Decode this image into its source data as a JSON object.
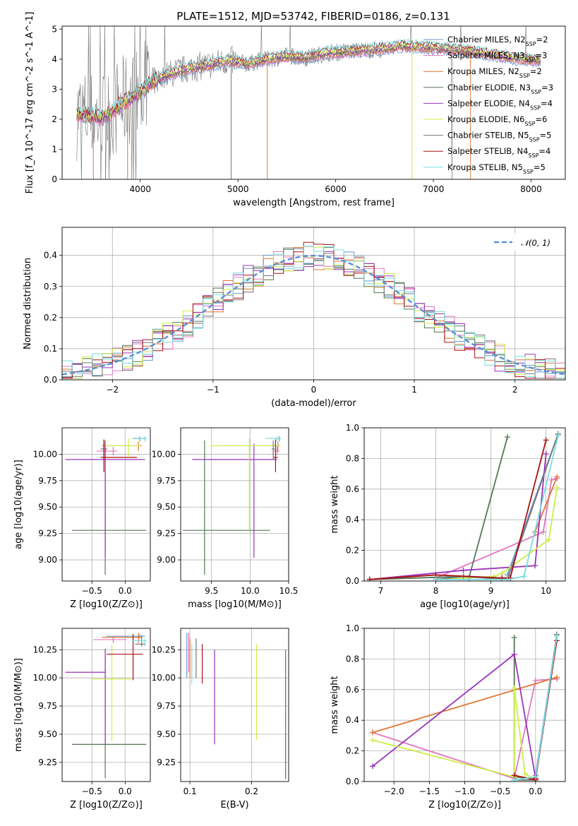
{
  "title": "PLATE=1512, MJD=53742, FIBERID=0186, z=0.131",
  "colors": {
    "chabrier_miles": "#6699cc",
    "salpeter_miles": "#e377c2",
    "kroupa_miles": "#dd7733",
    "chabrier_elodie": "#557755",
    "salpeter_elodie": "#9933bb",
    "kroupa_elodie": "#ccee44",
    "chabrier_stelib": "#777777",
    "salpeter_stelib": "#aa1111",
    "kroupa_stelib": "#77dddd",
    "normal_curve": "#5b8fd6",
    "grid": "#b0b0b0"
  },
  "chart_data": [
    {
      "id": "spectrum",
      "type": "line",
      "title": "PLATE=1512, MJD=53742, FIBERID=0186, z=0.131",
      "xlabel": "wavelength [Angstrom, rest frame]",
      "ylabel": "Flux [f_λ 10^-17 erg cm^-2 s^-1 A^-1]",
      "xlim": [
        3200,
        8350
      ],
      "ylim": [
        0,
        5.1
      ],
      "xticks": [
        4000,
        5000,
        6000,
        7000,
        8000
      ],
      "yticks": [
        0,
        1,
        2,
        3,
        4,
        5
      ],
      "grid": false,
      "legend_position": "right",
      "series": [
        {
          "name": "Chabrier MILES, N_SSP=2",
          "key": "chabrier_miles"
        },
        {
          "name": "Salpeter MILES, N_SSP=3",
          "key": "salpeter_miles"
        },
        {
          "name": "Kroupa MILES, N_SSP=2",
          "key": "kroupa_miles"
        },
        {
          "name": "Chabrier ELODIE, N_SSP=3",
          "key": "chabrier_elodie"
        },
        {
          "name": "Salpeter ELODIE, N_SSP=4",
          "key": "salpeter_elodie"
        },
        {
          "name": "Kroupa ELODIE, N_SSP=6",
          "key": "kroupa_elodie"
        },
        {
          "name": "Chabrier STELIB, N_SSP=5",
          "key": "chabrier_stelib"
        },
        {
          "name": "Salpeter STELIB, N_SSP=4",
          "key": "salpeter_stelib"
        },
        {
          "name": "Kroupa STELIB, N_SSP=5",
          "key": "kroupa_stelib"
        }
      ],
      "continuum": {
        "x": [
          3350,
          3500,
          3600,
          3700,
          3800,
          3900,
          4000,
          4100,
          4300,
          4500,
          4700,
          4900,
          5100,
          5300,
          5500,
          5700,
          5900,
          6100,
          6300,
          6500,
          6700,
          6900,
          7100,
          7300,
          7500,
          7700,
          7900,
          8100
        ],
        "y": [
          2.2,
          2.1,
          2.05,
          2.2,
          2.5,
          2.7,
          2.9,
          3.2,
          3.5,
          3.7,
          3.8,
          3.95,
          3.85,
          4.0,
          4.1,
          4.05,
          4.2,
          4.25,
          4.3,
          4.35,
          4.45,
          4.4,
          4.35,
          4.3,
          4.2,
          4.1,
          4.0,
          3.95
        ]
      }
    },
    {
      "id": "residuals",
      "type": "line",
      "xlabel": "(data-model)/error",
      "ylabel": "Normed distribution",
      "xlim": [
        -2.5,
        2.5
      ],
      "ylim": [
        0,
        0.49
      ],
      "xticks": [
        -2,
        -1,
        0,
        1,
        2
      ],
      "yticks": [
        0.0,
        0.1,
        0.2,
        0.3,
        0.4
      ],
      "grid": true,
      "legend": "𝒩(0, 1)",
      "legend_position": "top-right",
      "normal": {
        "mean": 0,
        "sigma": 1,
        "peak": 0.399
      },
      "histogram": {
        "bin_width": 0.1,
        "x_start": -2.5,
        "x_end": 2.5,
        "series_count": 9
      }
    },
    {
      "id": "age_vs_z",
      "type": "scatter",
      "xlabel": "Z [log10(Z/Z⊙)]",
      "ylabel": "age  [log10(age/yr)]",
      "xlim": [
        -0.95,
        0.38
      ],
      "ylim": [
        8.8,
        10.25
      ],
      "xticks": [
        -0.5,
        0.0
      ],
      "yticks": [
        9.0,
        9.25,
        9.5,
        9.75,
        10.0
      ],
      "grid": true,
      "points": [
        {
          "key": "chabrier_miles",
          "x": 0.22,
          "y": 10.15,
          "xerr": [
            0.1,
            0.08
          ],
          "yerr": [
            0.03,
            0.02
          ]
        },
        {
          "key": "salpeter_miles",
          "x": -0.18,
          "y": 10.03,
          "xerr": [
            0.25,
            0.06
          ],
          "yerr": [
            0.04,
            0.04
          ]
        },
        {
          "key": "kroupa_miles",
          "x": 0.2,
          "y": 10.08,
          "xerr": [
            0.55,
            0.05
          ],
          "yerr": [
            0.05,
            0.04
          ]
        },
        {
          "key": "chabrier_elodie",
          "x": -0.3,
          "y": 9.28,
          "xerr": [
            0.5,
            0.62
          ],
          "yerr": [
            0.42,
            0.85
          ]
        },
        {
          "key": "salpeter_elodie",
          "x": -0.3,
          "y": 9.95,
          "xerr": [
            0.6,
            0.6
          ],
          "yerr": [
            0.93,
            0.15
          ]
        },
        {
          "key": "kroupa_elodie",
          "x": 0.05,
          "y": 10.08,
          "xerr": [
            0.35,
            0.18
          ],
          "yerr": [
            0.1,
            0.07
          ]
        },
        {
          "key": "chabrier_stelib",
          "x": -0.32,
          "y": 10.05,
          "xerr": [
            0.05,
            0.05
          ],
          "yerr": [
            0.1,
            0.08
          ]
        },
        {
          "key": "salpeter_stelib",
          "x": -0.32,
          "y": 9.97,
          "xerr": [
            0.05,
            0.5
          ],
          "yerr": [
            0.14,
            0.17
          ]
        },
        {
          "key": "kroupa_stelib",
          "x": 0.3,
          "y": 10.15,
          "xerr": [
            0.15,
            0.03
          ],
          "yerr": [
            0.03,
            0.02
          ]
        }
      ]
    },
    {
      "id": "age_vs_mass",
      "type": "scatter",
      "xlabel": "mass [log10(M/M⊙)]",
      "ylabel": "",
      "xlim": [
        9.1,
        10.5
      ],
      "ylim": [
        8.8,
        10.25
      ],
      "xticks": [
        9.5,
        10.0,
        10.5
      ],
      "yticks": [
        9.0,
        9.25,
        9.5,
        9.75,
        10.0
      ],
      "grid": true,
      "points": [
        {
          "key": "chabrier_miles",
          "x": 10.38,
          "y": 10.15,
          "xerr": [
            0.05,
            0.02
          ],
          "yerr": [
            0.03,
            0.02
          ]
        },
        {
          "key": "salpeter_miles",
          "x": 10.35,
          "y": 10.03,
          "xerr": [
            0.05,
            0.03
          ],
          "yerr": [
            0.04,
            0.04
          ]
        },
        {
          "key": "kroupa_miles",
          "x": 10.36,
          "y": 10.08,
          "xerr": [
            0.06,
            0.03
          ],
          "yerr": [
            0.05,
            0.04
          ]
        },
        {
          "key": "chabrier_elodie",
          "x": 9.41,
          "y": 9.28,
          "xerr": [
            0.28,
            0.85
          ],
          "yerr": [
            0.42,
            0.85
          ]
        },
        {
          "key": "salpeter_elodie",
          "x": 10.05,
          "y": 9.95,
          "xerr": [
            0.8,
            0.3
          ],
          "yerr": [
            0.93,
            0.15
          ]
        },
        {
          "key": "kroupa_elodie",
          "x": 9.99,
          "y": 10.08,
          "xerr": [
            0.5,
            0.4
          ],
          "yerr": [
            0.8,
            0.07
          ]
        },
        {
          "key": "chabrier_stelib",
          "x": 10.3,
          "y": 10.05,
          "xerr": [
            0.02,
            0.02
          ],
          "yerr": [
            0.1,
            0.08
          ]
        },
        {
          "key": "salpeter_stelib",
          "x": 10.33,
          "y": 9.97,
          "xerr": [
            0.03,
            0.03
          ],
          "yerr": [
            0.14,
            0.17
          ]
        },
        {
          "key": "kroupa_stelib",
          "x": 10.35,
          "y": 10.15,
          "xerr": [
            0.15,
            0.05
          ],
          "yerr": [
            0.03,
            0.02
          ]
        }
      ]
    },
    {
      "id": "weight_vs_age",
      "type": "line",
      "xlabel": "age  [log10(age/yr)]",
      "ylabel": "mass weight",
      "xlim": [
        6.7,
        10.35
      ],
      "ylim": [
        0,
        1.0
      ],
      "xticks": [
        7,
        8,
        9,
        10
      ],
      "yticks": [
        0.0,
        0.2,
        0.4,
        0.6,
        0.8,
        1.0
      ],
      "grid": true,
      "series": [
        {
          "key": "chabrier_miles",
          "x": [
            9.3,
            10.22
          ],
          "y": [
            0.04,
            0.96
          ]
        },
        {
          "key": "salpeter_miles",
          "x": [
            8.0,
            9.95,
            10.1,
            10.2
          ],
          "y": [
            0.02,
            0.32,
            0.66,
            0.67
          ]
        },
        {
          "key": "kroupa_miles",
          "x": [
            9.8,
            10.2
          ],
          "y": [
            0.32,
            0.68
          ]
        },
        {
          "key": "chabrier_elodie",
          "x": [
            6.8,
            8.5,
            8.6,
            9.3
          ],
          "y": [
            0.01,
            0.03,
            0.02,
            0.94
          ]
        },
        {
          "key": "salpeter_elodie",
          "x": [
            6.8,
            8.5,
            9.8,
            10.0
          ],
          "y": [
            0.01,
            0.07,
            0.1,
            0.83
          ]
        },
        {
          "key": "kroupa_elodie",
          "x": [
            8.0,
            9.05,
            9.2,
            10.05,
            10.2
          ],
          "y": [
            0.01,
            0.03,
            0.05,
            0.27,
            0.61
          ]
        },
        {
          "key": "chabrier_stelib",
          "x": [
            8.0,
            8.5,
            9.3,
            10.22
          ],
          "y": [
            0.01,
            0.03,
            0.01,
            0.96
          ]
        },
        {
          "key": "salpeter_stelib",
          "x": [
            6.8,
            8.0,
            9.2,
            9.35,
            10.0
          ],
          "y": [
            0.01,
            0.04,
            0.02,
            0.02,
            0.92
          ]
        },
        {
          "key": "kroupa_stelib",
          "x": [
            8.0,
            9.3,
            9.6,
            10.22
          ],
          "y": [
            0.01,
            0.01,
            0.03,
            0.95
          ]
        }
      ]
    },
    {
      "id": "mass_vs_z",
      "type": "scatter",
      "xlabel": "Z [log10(Z/Z⊙)]",
      "ylabel": "mass [log10(M/M⊙)]",
      "xlim": [
        -0.95,
        0.38
      ],
      "ylim": [
        9.08,
        10.44
      ],
      "xticks": [
        -0.5,
        0.0
      ],
      "yticks": [
        9.25,
        9.5,
        9.75,
        10.0,
        10.25
      ],
      "grid": true,
      "points": [
        {
          "key": "chabrier_miles",
          "x": 0.22,
          "y": 10.37,
          "xerr": [
            0.5,
            0.08
          ],
          "yerr": [
            0.02,
            0.02
          ]
        },
        {
          "key": "salpeter_miles",
          "x": -0.18,
          "y": 10.34,
          "xerr": [
            0.3,
            0.2
          ],
          "yerr": [
            0.03,
            0.03
          ]
        },
        {
          "key": "kroupa_miles",
          "x": 0.2,
          "y": 10.36,
          "xerr": [
            0.55,
            0.05
          ],
          "yerr": [
            0.05,
            0.04
          ]
        },
        {
          "key": "chabrier_elodie",
          "x": -0.3,
          "y": 9.41,
          "xerr": [
            0.5,
            0.62
          ],
          "yerr": [
            0.3,
            0.85
          ]
        },
        {
          "key": "salpeter_elodie",
          "x": -0.3,
          "y": 10.05,
          "xerr": [
            0.6,
            0.0
          ],
          "yerr": [
            0.65,
            0.2
          ]
        },
        {
          "key": "kroupa_elodie",
          "x": -0.2,
          "y": 9.99,
          "xerr": [
            0.3,
            0.3
          ],
          "yerr": [
            0.55,
            0.3
          ]
        },
        {
          "key": "chabrier_stelib",
          "x": 0.25,
          "y": 10.3,
          "xerr": [
            0.1,
            0.05
          ],
          "yerr": [
            0.02,
            0.08
          ]
        },
        {
          "key": "salpeter_stelib",
          "x": 0.12,
          "y": 10.21,
          "xerr": [
            0.4,
            0.15
          ],
          "yerr": [
            0.23,
            0.18
          ]
        },
        {
          "key": "kroupa_stelib",
          "x": 0.3,
          "y": 10.33,
          "xerr": [
            0.2,
            0.02
          ],
          "yerr": [
            0.05,
            0.02
          ]
        }
      ]
    },
    {
      "id": "mass_vs_ebv",
      "type": "scatter",
      "xlabel": "E(B-V)",
      "ylabel": "",
      "xlim": [
        0.085,
        0.26
      ],
      "ylim": [
        9.08,
        10.44
      ],
      "xticks": [
        0.1,
        0.2
      ],
      "yticks": [
        9.25,
        9.5,
        9.75,
        10.0,
        10.25
      ],
      "grid": true,
      "points": [
        {
          "key": "chabrier_miles",
          "x": 0.095,
          "y": 10.25,
          "yerr": [
            0.25,
            0.15
          ]
        },
        {
          "key": "salpeter_miles",
          "x": 0.098,
          "y": 10.25,
          "yerr": [
            0.2,
            0.15
          ]
        },
        {
          "key": "kroupa_miles",
          "x": 0.1,
          "y": 10.2,
          "yerr": [
            0.2,
            0.15
          ]
        },
        {
          "key": "chabrier_elodie",
          "x": 0.255,
          "y": 9.65,
          "yerr": [
            0.55,
            0.6
          ]
        },
        {
          "key": "salpeter_elodie",
          "x": 0.14,
          "y": 9.82,
          "yerr": [
            0.41,
            0.43
          ]
        },
        {
          "key": "kroupa_elodie",
          "x": 0.208,
          "y": 9.85,
          "yerr": [
            0.4,
            0.45
          ]
        },
        {
          "key": "chabrier_stelib",
          "x": 0.11,
          "y": 10.15,
          "yerr": [
            0.15,
            0.2
          ]
        },
        {
          "key": "salpeter_stelib",
          "x": 0.12,
          "y": 10.15,
          "yerr": [
            0.2,
            0.15
          ]
        },
        {
          "key": "kroupa_stelib",
          "x": 0.103,
          "y": 10.15,
          "yerr": [
            0.2,
            0.15
          ]
        }
      ]
    },
    {
      "id": "weight_vs_z",
      "type": "line",
      "xlabel": "Z [log10(Z/Z⊙)]",
      "ylabel": "mass weight",
      "xlim": [
        -2.42,
        0.42
      ],
      "ylim": [
        0,
        1.0
      ],
      "xticks": [
        -2.0,
        -1.5,
        -1.0,
        -0.5,
        0.0
      ],
      "yticks": [
        0.0,
        0.2,
        0.4,
        0.6,
        0.8,
        1.0
      ],
      "grid": true,
      "series": [
        {
          "key": "chabrier_miles",
          "x": [
            0.0,
            0.3
          ],
          "y": [
            0.04,
            0.96
          ]
        },
        {
          "key": "salpeter_miles",
          "x": [
            -2.3,
            -0.3,
            0.0,
            0.3
          ],
          "y": [
            0.32,
            0.02,
            0.66,
            0.67
          ]
        },
        {
          "key": "kroupa_miles",
          "x": [
            -2.3,
            0.3
          ],
          "y": [
            0.32,
            0.68
          ]
        },
        {
          "key": "chabrier_elodie",
          "x": [
            -0.3,
            -0.3,
            0.0
          ],
          "y": [
            0.94,
            0.03,
            0.02
          ]
        },
        {
          "key": "salpeter_elodie",
          "x": [
            -2.3,
            -0.3,
            0.0,
            0.0
          ],
          "y": [
            0.1,
            0.83,
            0.02,
            0.01
          ]
        },
        {
          "key": "kroupa_elodie",
          "x": [
            -2.3,
            -0.3,
            -0.3,
            -0.15,
            0.0
          ],
          "y": [
            0.27,
            0.03,
            0.61,
            0.05,
            0.01
          ]
        },
        {
          "key": "chabrier_stelib",
          "x": [
            -0.3,
            0.0,
            0.3
          ],
          "y": [
            0.01,
            0.01,
            0.96
          ]
        },
        {
          "key": "salpeter_stelib",
          "x": [
            -0.3,
            0.0,
            0.0,
            0.3
          ],
          "y": [
            0.04,
            0.01,
            0.02,
            0.92
          ]
        },
        {
          "key": "kroupa_stelib",
          "x": [
            -0.3,
            0.0,
            0.3
          ],
          "y": [
            0.01,
            0.03,
            0.95
          ]
        }
      ]
    }
  ]
}
